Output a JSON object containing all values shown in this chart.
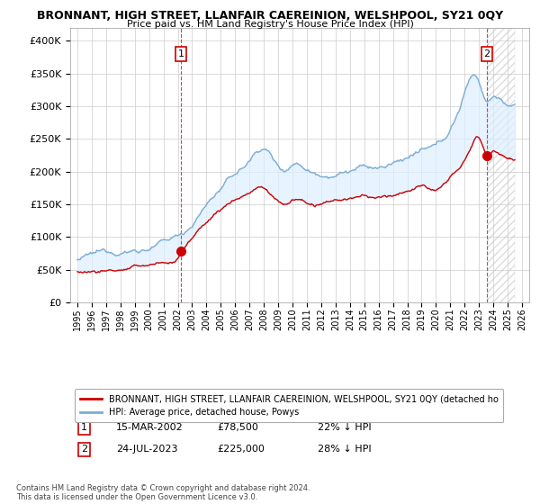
{
  "title": "BRONNANT, HIGH STREET, LLANFAIR CAEREINION, WELSHPOOL, SY21 0QY",
  "subtitle": "Price paid vs. HM Land Registry's House Price Index (HPI)",
  "legend_label_red": "BRONNANT, HIGH STREET, LLANFAIR CAEREINION, WELSHPOOL, SY21 0QY (detached ho",
  "legend_label_blue": "HPI: Average price, detached house, Powys",
  "footer": "Contains HM Land Registry data © Crown copyright and database right 2024.\nThis data is licensed under the Open Government Licence v3.0.",
  "point1_date": "15-MAR-2002",
  "point1_price": 78500,
  "point1_label": "22% ↓ HPI",
  "point1_x": 2002.21,
  "point2_date": "24-JUL-2023",
  "point2_price": 225000,
  "point2_label": "28% ↓ HPI",
  "point2_x": 2023.56,
  "ylim": [
    0,
    420000
  ],
  "xlim_start": 1994.5,
  "xlim_end": 2026.5,
  "background_color": "#ffffff",
  "grid_color": "#cccccc",
  "red_color": "#cc0000",
  "blue_color": "#7aadd4",
  "fill_color": "#ddeeff",
  "dashed_color": "#cc3333"
}
